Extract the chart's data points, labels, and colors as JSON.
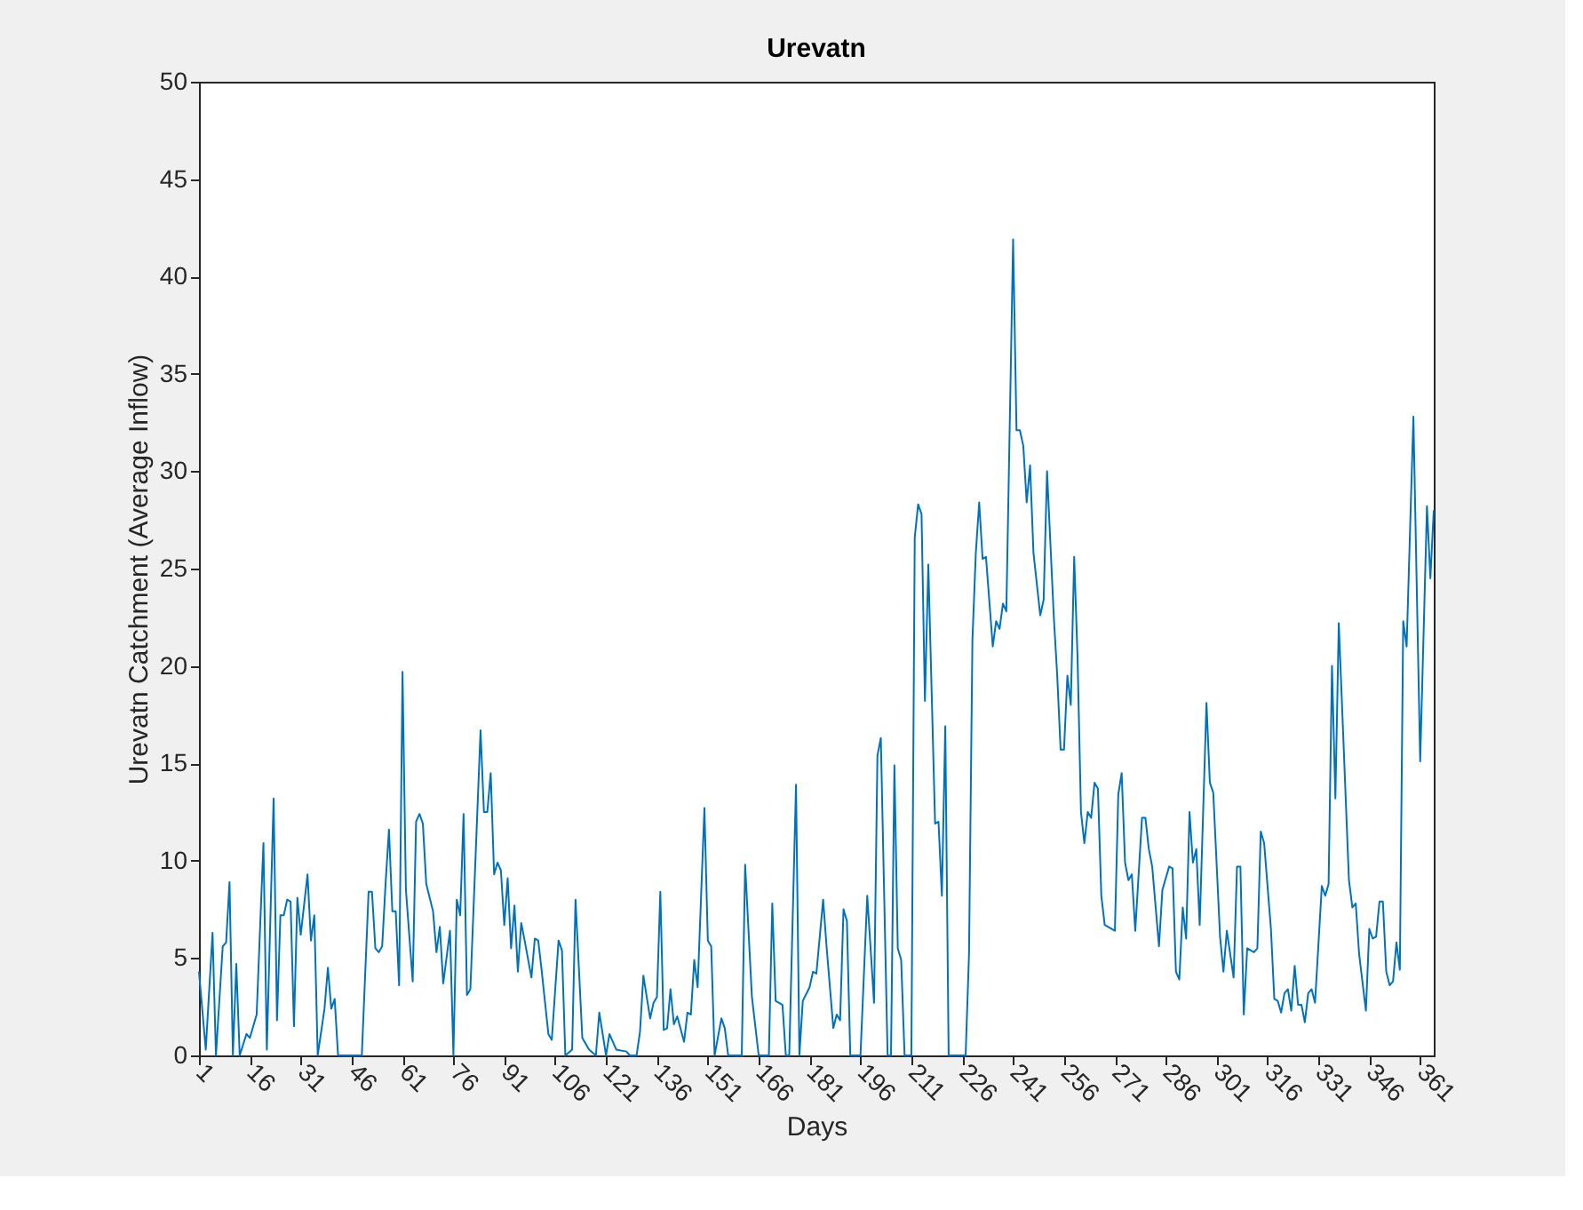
{
  "chart_data": {
    "type": "line",
    "title": "Urevatn",
    "xlabel": "Days",
    "ylabel": "Urevatn Catchment (Average Inflow)",
    "x": [
      1,
      3,
      5,
      6,
      8,
      9,
      10,
      11,
      12,
      13,
      15,
      16,
      18,
      20,
      21,
      23,
      24,
      25,
      26,
      27,
      28,
      29,
      30,
      31,
      33,
      34,
      35,
      36,
      38,
      39,
      40,
      41,
      42,
      49,
      51,
      52,
      53,
      54,
      55,
      56,
      57,
      58,
      59,
      60,
      61,
      62,
      64,
      65,
      66,
      67,
      68,
      70,
      71,
      72,
      73,
      75,
      76,
      77,
      78,
      79,
      80,
      81,
      84,
      85,
      86,
      87,
      88,
      89,
      90,
      91,
      92,
      93,
      94,
      95,
      96,
      97,
      99,
      100,
      101,
      102,
      104,
      105,
      107,
      108,
      109,
      111,
      112,
      114,
      116,
      118,
      119,
      121,
      122,
      124,
      127,
      128,
      130,
      131,
      132,
      134,
      135,
      136,
      137,
      138,
      139,
      140,
      141,
      142,
      144,
      145,
      146,
      147,
      148,
      150,
      151,
      152,
      153,
      155,
      156,
      157,
      161,
      162,
      164,
      166,
      169,
      170,
      171,
      173,
      174,
      175,
      177,
      178,
      179,
      181,
      182,
      183,
      185,
      186,
      188,
      189,
      190,
      191,
      192,
      193,
      196,
      198,
      200,
      201,
      202,
      204,
      205,
      206,
      207,
      208,
      209,
      211,
      212,
      213,
      214,
      215,
      216,
      218,
      219,
      220,
      221,
      222,
      227,
      228,
      229,
      230,
      231,
      232,
      233,
      235,
      236,
      237,
      238,
      239,
      241,
      242,
      243,
      244,
      245,
      246,
      247,
      249,
      250,
      251,
      253,
      254,
      255,
      256,
      257,
      258,
      259,
      260,
      261,
      262,
      263,
      264,
      265,
      266,
      267,
      268,
      269,
      271,
      272,
      273,
      274,
      275,
      276,
      277,
      279,
      280,
      281,
      282,
      284,
      285,
      287,
      288,
      289,
      290,
      291,
      292,
      293,
      294,
      295,
      296,
      298,
      299,
      300,
      302,
      303,
      304,
      306,
      307,
      308,
      309,
      310,
      312,
      313,
      314,
      315,
      317,
      318,
      319,
      320,
      321,
      322,
      323,
      324,
      325,
      326,
      327,
      328,
      329,
      330,
      332,
      333,
      334,
      335,
      336,
      337,
      340,
      341,
      342,
      343,
      345,
      346,
      347,
      348,
      349,
      350,
      351,
      352,
      353,
      354,
      355,
      356,
      357,
      359,
      361,
      363,
      364,
      365
    ],
    "series": [
      {
        "color": "#0072bd",
        "values": [
          4.3,
          0.3,
          6.3,
          0,
          5.6,
          5.8,
          8.9,
          0,
          4.7,
          0,
          1.1,
          0.9,
          2.1,
          10.9,
          0.3,
          13.2,
          1.8,
          7.2,
          7.2,
          8.0,
          7.9,
          1.5,
          8.1,
          6.2,
          9.3,
          5.9,
          7.2,
          0,
          2.4,
          4.5,
          2.4,
          2.9,
          0,
          0,
          8.4,
          8.4,
          5.5,
          5.3,
          5.6,
          8.8,
          11.6,
          7.4,
          7.4,
          3.6,
          19.7,
          8.5,
          3.8,
          12.0,
          12.4,
          11.9,
          8.8,
          7.4,
          5.3,
          6.6,
          3.7,
          6.4,
          0,
          8.0,
          7.2,
          12.4,
          3.1,
          3.4,
          16.7,
          12.5,
          12.5,
          14.5,
          9.3,
          9.9,
          9.5,
          6.7,
          9.1,
          5.5,
          7.7,
          4.3,
          6.8,
          5.9,
          4.0,
          6.0,
          5.9,
          4.4,
          1.1,
          0.8,
          5.9,
          5.4,
          0,
          0.3,
          8.0,
          0.9,
          0.3,
          0,
          2.2,
          0,
          1.1,
          0.3,
          0.2,
          0,
          0,
          1.2,
          4.1,
          1.9,
          2.7,
          3.0,
          8.4,
          1.3,
          1.4,
          3.4,
          1.6,
          2.0,
          0.7,
          2.2,
          2.1,
          4.9,
          3.5,
          12.7,
          5.9,
          5.6,
          0,
          1.9,
          1.4,
          0,
          0,
          9.8,
          3.0,
          0,
          0,
          7.8,
          2.8,
          2.6,
          0,
          0,
          13.9,
          0,
          2.8,
          3.5,
          4.3,
          4.2,
          8.0,
          5.6,
          1.4,
          2.1,
          1.8,
          7.5,
          6.9,
          0,
          0,
          8.2,
          2.7,
          15.4,
          16.3,
          0,
          0,
          14.9,
          5.5,
          4.9,
          0,
          0,
          26.6,
          28.3,
          27.8,
          18.2,
          25.2,
          11.9,
          12.0,
          8.2,
          16.9,
          0,
          0,
          5.2,
          21.3,
          25.8,
          28.4,
          25.5,
          25.6,
          21.0,
          22.3,
          21.9,
          23.2,
          22.8,
          41.9,
          32.1,
          32.1,
          31.3,
          28.4,
          30.3,
          25.8,
          22.6,
          23.4,
          30.0,
          22.5,
          19.5,
          15.7,
          15.7,
          19.5,
          18.0,
          25.6,
          20.4,
          12.5,
          10.9,
          12.5,
          12.2,
          14.0,
          13.7,
          8.2,
          6.7,
          6.6,
          6.4,
          13.4,
          14.5,
          9.9,
          9.0,
          9.3,
          6.4,
          12.2,
          12.2,
          10.6,
          9.7,
          5.6,
          8.5,
          9.7,
          9.6,
          4.3,
          3.9,
          7.6,
          6.0,
          12.5,
          9.9,
          10.6,
          6.7,
          18.1,
          14.0,
          13.5,
          6.1,
          4.3,
          6.4,
          4.0,
          9.7,
          9.7,
          2.1,
          5.5,
          5.3,
          5.5,
          11.5,
          10.9,
          6.5,
          2.9,
          2.8,
          2.2,
          3.2,
          3.4,
          2.3,
          4.6,
          2.6,
          2.6,
          1.7,
          3.2,
          3.4,
          2.7,
          8.7,
          8.2,
          8.8,
          20.0,
          13.2,
          22.2,
          9.0,
          7.6,
          7.8,
          5.2,
          2.3,
          6.5,
          6.0,
          6.1,
          7.9,
          7.9,
          4.3,
          3.6,
          3.8,
          5.8,
          4.4,
          22.3,
          21.0,
          32.8,
          15.1,
          28.2,
          24.5,
          28.0
        ]
      }
    ],
    "xlim": [
      1,
      365
    ],
    "ylim": [
      0,
      50
    ],
    "xticks": [
      1,
      16,
      31,
      46,
      61,
      76,
      91,
      106,
      121,
      136,
      151,
      166,
      181,
      196,
      211,
      226,
      241,
      256,
      271,
      286,
      301,
      316,
      331,
      346,
      361
    ],
    "yticks": [
      0,
      5,
      10,
      15,
      20,
      25,
      30,
      35,
      40,
      45,
      50
    ],
    "grid": false,
    "marker": "none",
    "line_style": "solid"
  }
}
